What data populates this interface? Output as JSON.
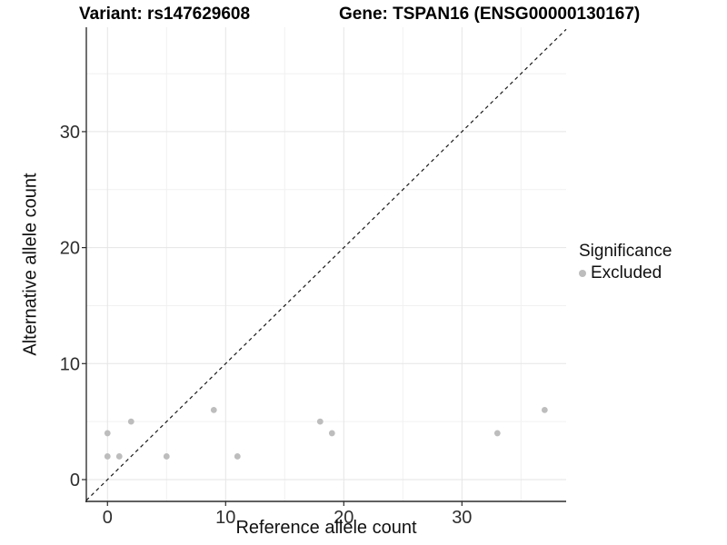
{
  "chart_data": {
    "type": "scatter",
    "title_left": "Variant: rs147629608",
    "title_right": "Gene: TSPAN16 (ENSG00000130167)",
    "xlabel": "Reference allele count",
    "ylabel": "Alternative allele count",
    "xlim": [
      -1.79,
      38.82
    ],
    "ylim": [
      -1.88,
      39.0
    ],
    "x_ticks": [
      0,
      10,
      20,
      30
    ],
    "y_ticks": [
      0,
      10,
      20,
      30
    ],
    "x_minor_ticks": [
      5,
      15,
      25,
      35
    ],
    "y_minor_ticks": [
      5,
      15,
      25,
      35
    ],
    "grid": true,
    "series": [
      {
        "name": "Excluded",
        "color": "#bdbdbd",
        "points": [
          [
            0,
            2
          ],
          [
            0,
            4
          ],
          [
            1,
            2
          ],
          [
            2,
            5
          ],
          [
            5,
            2
          ],
          [
            9,
            6
          ],
          [
            11,
            2
          ],
          [
            18,
            5
          ],
          [
            19,
            4
          ],
          [
            33,
            4
          ],
          [
            37,
            6
          ]
        ]
      }
    ],
    "abline": {
      "slope": 1,
      "intercept": 0,
      "style": "dashed",
      "color": "#1a1a1a"
    },
    "legend": {
      "title": "Significance",
      "position": "right",
      "items": [
        {
          "label": "Excluded",
          "color": "#bdbdbd"
        }
      ]
    },
    "colors": {
      "point": "#bdbdbd",
      "grid_major": "#e5e5e5",
      "grid_minor": "#f1f1f1",
      "axis_line": "#2b2b2b",
      "tick_text": "#2e2e2e"
    }
  }
}
